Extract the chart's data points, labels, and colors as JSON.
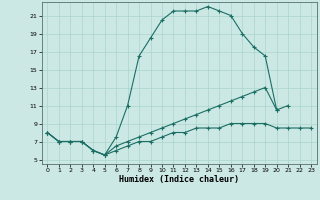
{
  "xlabel": "Humidex (Indice chaleur)",
  "xlim": [
    -0.5,
    23.5
  ],
  "ylim": [
    4.5,
    22.5
  ],
  "xticks": [
    0,
    1,
    2,
    3,
    4,
    5,
    6,
    7,
    8,
    9,
    10,
    11,
    12,
    13,
    14,
    15,
    16,
    17,
    18,
    19,
    20,
    21,
    22,
    23
  ],
  "yticks": [
    5,
    7,
    9,
    11,
    13,
    15,
    17,
    19,
    21
  ],
  "bg_color": "#cce8e4",
  "line_color": "#1a6e64",
  "grid_color": "#aad4ce",
  "line1_x": [
    0,
    1,
    2,
    3,
    4,
    5,
    6,
    7,
    8,
    9,
    10,
    11,
    12,
    13,
    14,
    15,
    16,
    17,
    18,
    19,
    20
  ],
  "line1_y": [
    8,
    7,
    7,
    7,
    6,
    5.5,
    7.5,
    11,
    16.5,
    18.5,
    20.5,
    21.5,
    21.5,
    21.5,
    22,
    21.5,
    21,
    19,
    17.5,
    16.5,
    10.5
  ],
  "line2_x": [
    0,
    1,
    2,
    3,
    4,
    5,
    6,
    7,
    8,
    9,
    10,
    11,
    12,
    13,
    14,
    15,
    16,
    17,
    18,
    19,
    20,
    21
  ],
  "line2_y": [
    8,
    7,
    7,
    7,
    6,
    5.5,
    6.5,
    7,
    7.5,
    8,
    8.5,
    9,
    9.5,
    10,
    10.5,
    11,
    11.5,
    12,
    12.5,
    13,
    10.5,
    11
  ],
  "line3_x": [
    0,
    1,
    2,
    3,
    4,
    5,
    6,
    7,
    8,
    9,
    10,
    11,
    12,
    13,
    14,
    15,
    16,
    17,
    18,
    19,
    20,
    21,
    22,
    23
  ],
  "line3_y": [
    8,
    7,
    7,
    7,
    6,
    5.5,
    6,
    6.5,
    7,
    7,
    7.5,
    8,
    8,
    8.5,
    8.5,
    8.5,
    9,
    9,
    9,
    9,
    8.5,
    8.5,
    8.5,
    8.5
  ]
}
